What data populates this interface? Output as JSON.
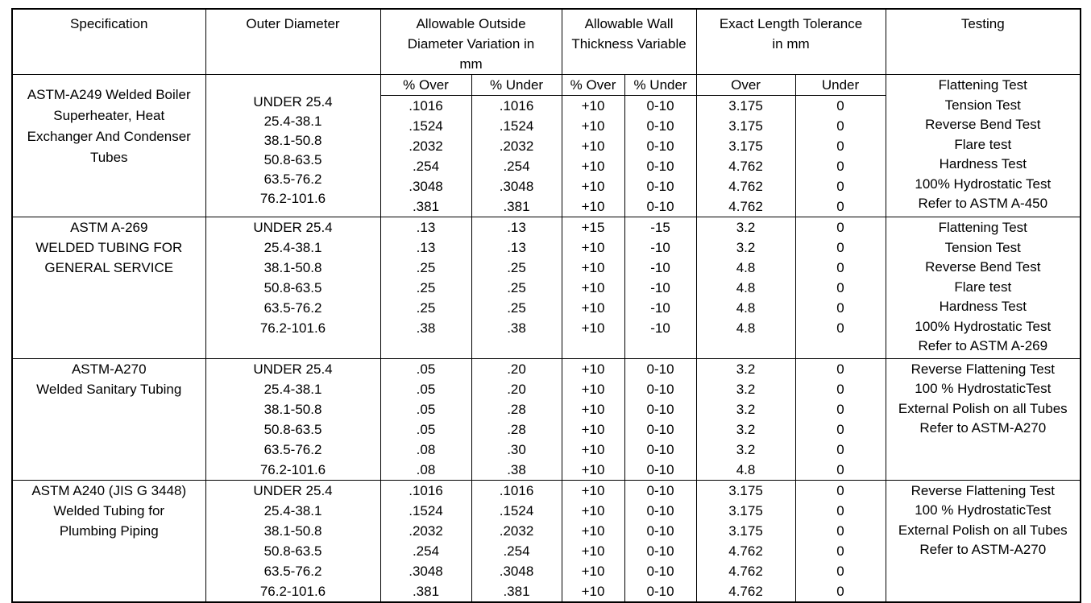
{
  "table": {
    "header": {
      "specification": "Specification",
      "outer_diameter": "Outer Diameter",
      "group_adv": "Allowable Outside\nDiameter Variation in\nmm",
      "group_wall": "Allowable Wall\nThickness Variable",
      "group_length": "Exact Length Tolerance\nin mm",
      "testing": "Testing",
      "subheaders": [
        "% Over",
        "% Under",
        "% Over",
        "% Under",
        "Over",
        "Under"
      ]
    },
    "sections": [
      {
        "specification": [
          "ASTM-A249 Welded Boiler",
          "Superheater, Heat",
          "Exchanger And Condenser",
          "Tubes"
        ],
        "od_merged": [
          "UNDER 25.4",
          "25.4-38.1",
          "38.1-50.8",
          "50.8-63.5",
          "63.5-76.2",
          "76.2-101.6"
        ],
        "rows": [
          [
            ".1016",
            ".1016",
            "+10",
            "0-10",
            "3.175",
            "0"
          ],
          [
            ".1524",
            ".1524",
            "+10",
            "0-10",
            "3.175",
            "0"
          ],
          [
            ".2032",
            ".2032",
            "+10",
            "0-10",
            "3.175",
            "0"
          ],
          [
            ".254",
            ".254",
            "+10",
            "0-10",
            "4.762",
            "0"
          ],
          [
            ".3048",
            ".3048",
            "+10",
            "0-10",
            "4.762",
            "0"
          ],
          [
            ".381",
            ".381",
            "+10",
            "0-10",
            "4.762",
            "0"
          ]
        ],
        "testing": [
          "Flattening Test",
          "Tension Test",
          "Reverse Bend Test",
          "Flare test",
          "Hardness Test",
          "100% Hydrostatic Test",
          "Refer to ASTM A-450"
        ]
      },
      {
        "specification": [
          "ASTM A-269",
          "WELDED TUBING FOR",
          "GENERAL SERVICE"
        ],
        "extra_empty_row": true,
        "rows": [
          [
            "UNDER 25.4",
            ".13",
            ".13",
            "+15",
            "-15",
            "3.2",
            "0"
          ],
          [
            "25.4-38.1",
            ".13",
            ".13",
            "+10",
            "-10",
            "3.2",
            "0"
          ],
          [
            "38.1-50.8",
            ".25",
            ".25",
            "+10",
            "-10",
            "4.8",
            "0"
          ],
          [
            "50.8-63.5",
            ".25",
            ".25",
            "+10",
            "-10",
            "4.8",
            "0"
          ],
          [
            "63.5-76.2",
            ".25",
            ".25",
            "+10",
            "-10",
            "4.8",
            "0"
          ],
          [
            "76.2-101.6",
            ".38",
            ".38",
            "+10",
            "-10",
            "4.8",
            "0"
          ]
        ],
        "testing": [
          "Flattening Test",
          "Tension Test",
          "Reverse Bend Test",
          "Flare test",
          "Hardness Test",
          "100% Hydrostatic Test",
          "Refer to ASTM A-269"
        ]
      },
      {
        "specification": [
          "ASTM-A270",
          "Welded Sanitary Tubing"
        ],
        "rows": [
          [
            "UNDER 25.4",
            ".05",
            ".20",
            "+10",
            "0-10",
            "3.2",
            "0"
          ],
          [
            "25.4-38.1",
            ".05",
            ".20",
            "+10",
            "0-10",
            "3.2",
            "0"
          ],
          [
            "38.1-50.8",
            ".05",
            ".28",
            "+10",
            "0-10",
            "3.2",
            "0"
          ],
          [
            "50.8-63.5",
            ".05",
            ".28",
            "+10",
            "0-10",
            "3.2",
            "0"
          ],
          [
            "63.5-76.2",
            ".08",
            ".30",
            "+10",
            "0-10",
            "3.2",
            "0"
          ],
          [
            "76.2-101.6",
            ".08",
            ".38",
            "+10",
            "0-10",
            "4.8",
            "0"
          ]
        ],
        "testing": [
          "Reverse Flattening Test",
          "100 % HydrostaticTest",
          "External Polish on all Tubes",
          "Refer to ASTM-A270"
        ]
      },
      {
        "specification": [
          "ASTM A240 (JIS G 3448)",
          "Welded Tubing for",
          "Plumbing Piping"
        ],
        "rows": [
          [
            "UNDER 25.4",
            ".1016",
            ".1016",
            "+10",
            "0-10",
            "3.175",
            "0"
          ],
          [
            "25.4-38.1",
            ".1524",
            ".1524",
            "+10",
            "0-10",
            "3.175",
            "0"
          ],
          [
            "38.1-50.8",
            ".2032",
            ".2032",
            "+10",
            "0-10",
            "3.175",
            "0"
          ],
          [
            "50.8-63.5",
            ".254",
            ".254",
            "+10",
            "0-10",
            "4.762",
            "0"
          ],
          [
            "63.5-76.2",
            ".3048",
            ".3048",
            "+10",
            "0-10",
            "4.762",
            "0"
          ],
          [
            "76.2-101.6",
            ".381",
            ".381",
            "+10",
            "0-10",
            "4.762",
            "0"
          ]
        ],
        "testing": [
          "Reverse Flattening Test",
          "100 % HydrostaticTest",
          "External Polish on all Tubes",
          "Refer to ASTM-A270"
        ]
      }
    ]
  }
}
